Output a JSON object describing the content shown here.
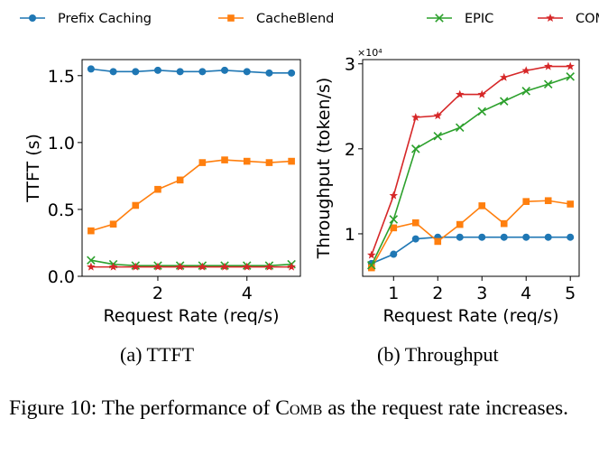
{
  "legend": [
    {
      "name": "Prefix Caching",
      "color": "#1f77b4",
      "marker": "circle"
    },
    {
      "name": "CacheBlend",
      "color": "#ff7f0e",
      "marker": "square"
    },
    {
      "name": "EPIC",
      "color": "#2ca02c",
      "marker": "x"
    },
    {
      "name": "COMB",
      "color": "#d62728",
      "marker": "star"
    }
  ],
  "chart_data": [
    {
      "type": "line",
      "title": "",
      "xlabel": "Request Rate (req/s)",
      "ylabel": "TTFT (s)",
      "xlim": [
        0.3,
        5.2
      ],
      "ylim": [
        0.0,
        1.62
      ],
      "xticks": [
        2,
        4
      ],
      "xtick_labels": [
        "2",
        "4"
      ],
      "yticks": [
        0.0,
        0.5,
        1.0,
        1.5
      ],
      "ytick_labels": [
        "0.0",
        "0.5",
        "1.0",
        "1.5"
      ],
      "x": [
        0.5,
        1.0,
        1.5,
        2.0,
        2.5,
        3.0,
        3.5,
        4.0,
        4.5,
        5.0
      ],
      "series": [
        {
          "name": "Prefix Caching",
          "values": [
            1.55,
            1.53,
            1.53,
            1.54,
            1.53,
            1.53,
            1.54,
            1.53,
            1.52,
            1.52
          ]
        },
        {
          "name": "CacheBlend",
          "values": [
            0.34,
            0.39,
            0.53,
            0.65,
            0.72,
            0.85,
            0.87,
            0.86,
            0.85,
            0.86
          ]
        },
        {
          "name": "EPIC",
          "values": [
            0.12,
            0.09,
            0.08,
            0.08,
            0.08,
            0.08,
            0.08,
            0.08,
            0.08,
            0.09
          ]
        },
        {
          "name": "COMB",
          "values": [
            0.07,
            0.07,
            0.07,
            0.07,
            0.07,
            0.07,
            0.07,
            0.07,
            0.07,
            0.07
          ]
        }
      ],
      "caption": "(a) TTFT"
    },
    {
      "type": "line",
      "title": "",
      "xlabel": "Request Rate (req/s)",
      "ylabel": "Throughput (token/s)",
      "xlim": [
        0.3,
        5.2
      ],
      "ylim": [
        0.5,
        3.05
      ],
      "xticks": [
        1,
        2,
        3,
        4,
        5
      ],
      "xtick_labels": [
        "1",
        "2",
        "3",
        "4",
        "5"
      ],
      "yticks": [
        1,
        2,
        3
      ],
      "ytick_labels": [
        "1",
        "2",
        "3"
      ],
      "y_multiplier": "×10⁴",
      "x": [
        0.5,
        1.0,
        1.5,
        2.0,
        2.5,
        3.0,
        3.5,
        4.0,
        4.5,
        5.0
      ],
      "series": [
        {
          "name": "Prefix Caching",
          "values": [
            0.65,
            0.76,
            0.94,
            0.96,
            0.96,
            0.96,
            0.96,
            0.96,
            0.96,
            0.96
          ]
        },
        {
          "name": "CacheBlend",
          "values": [
            0.6,
            1.07,
            1.13,
            0.91,
            1.11,
            1.33,
            1.12,
            1.38,
            1.39,
            1.35
          ]
        },
        {
          "name": "EPIC",
          "values": [
            0.63,
            1.17,
            2.0,
            2.15,
            2.25,
            2.44,
            2.56,
            2.68,
            2.76,
            2.85
          ]
        },
        {
          "name": "COMB",
          "values": [
            0.75,
            1.45,
            2.37,
            2.39,
            2.64,
            2.64,
            2.84,
            2.92,
            2.97,
            2.97
          ]
        }
      ],
      "caption": "(b) Throughput"
    }
  ],
  "figure_caption": {
    "prefix": "Figure 10: The performance of ",
    "system": "Comb",
    "suffix": " as the request rate increases."
  }
}
